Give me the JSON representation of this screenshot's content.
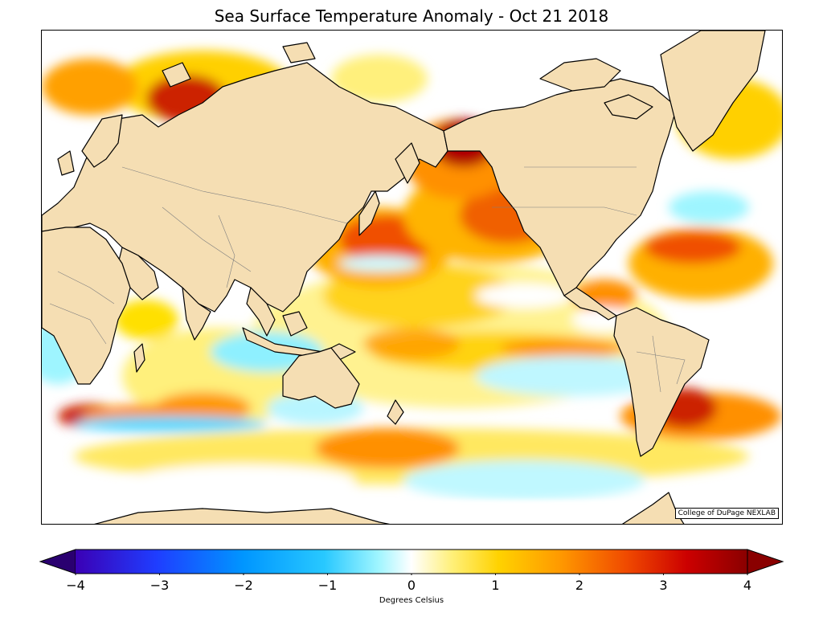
{
  "title": "Sea Surface Temperature Anomaly - Oct 21 2018",
  "credit": "College of DuPage NEXLAB",
  "colorbar": {
    "label": "Degrees Celsius",
    "min": -4,
    "max": 4,
    "extend": "both",
    "ticks": [
      "−4",
      "−3",
      "−2",
      "−1",
      "0",
      "1",
      "2",
      "3",
      "4"
    ],
    "colors": [
      "#2a0070",
      "#3b00b5",
      "#1f3dff",
      "#0096ff",
      "#28c8ff",
      "#9ef5ff",
      "#ffffff",
      "#ffef7a",
      "#ffd200",
      "#ff9a00",
      "#f04a00",
      "#cc0000",
      "#8a0000"
    ]
  },
  "map": {
    "ocean_background": "#ffffff",
    "land_color": "#f5deb3",
    "coastline_color": "#000000",
    "border_color": "#7f7f7f",
    "continents": [
      "Europe",
      "Asia",
      "Africa",
      "Australia",
      "North America",
      "South America",
      "Greenland",
      "Antarctica",
      "New Zealand",
      "Japan",
      "Madagascar",
      "Indonesia"
    ]
  }
}
